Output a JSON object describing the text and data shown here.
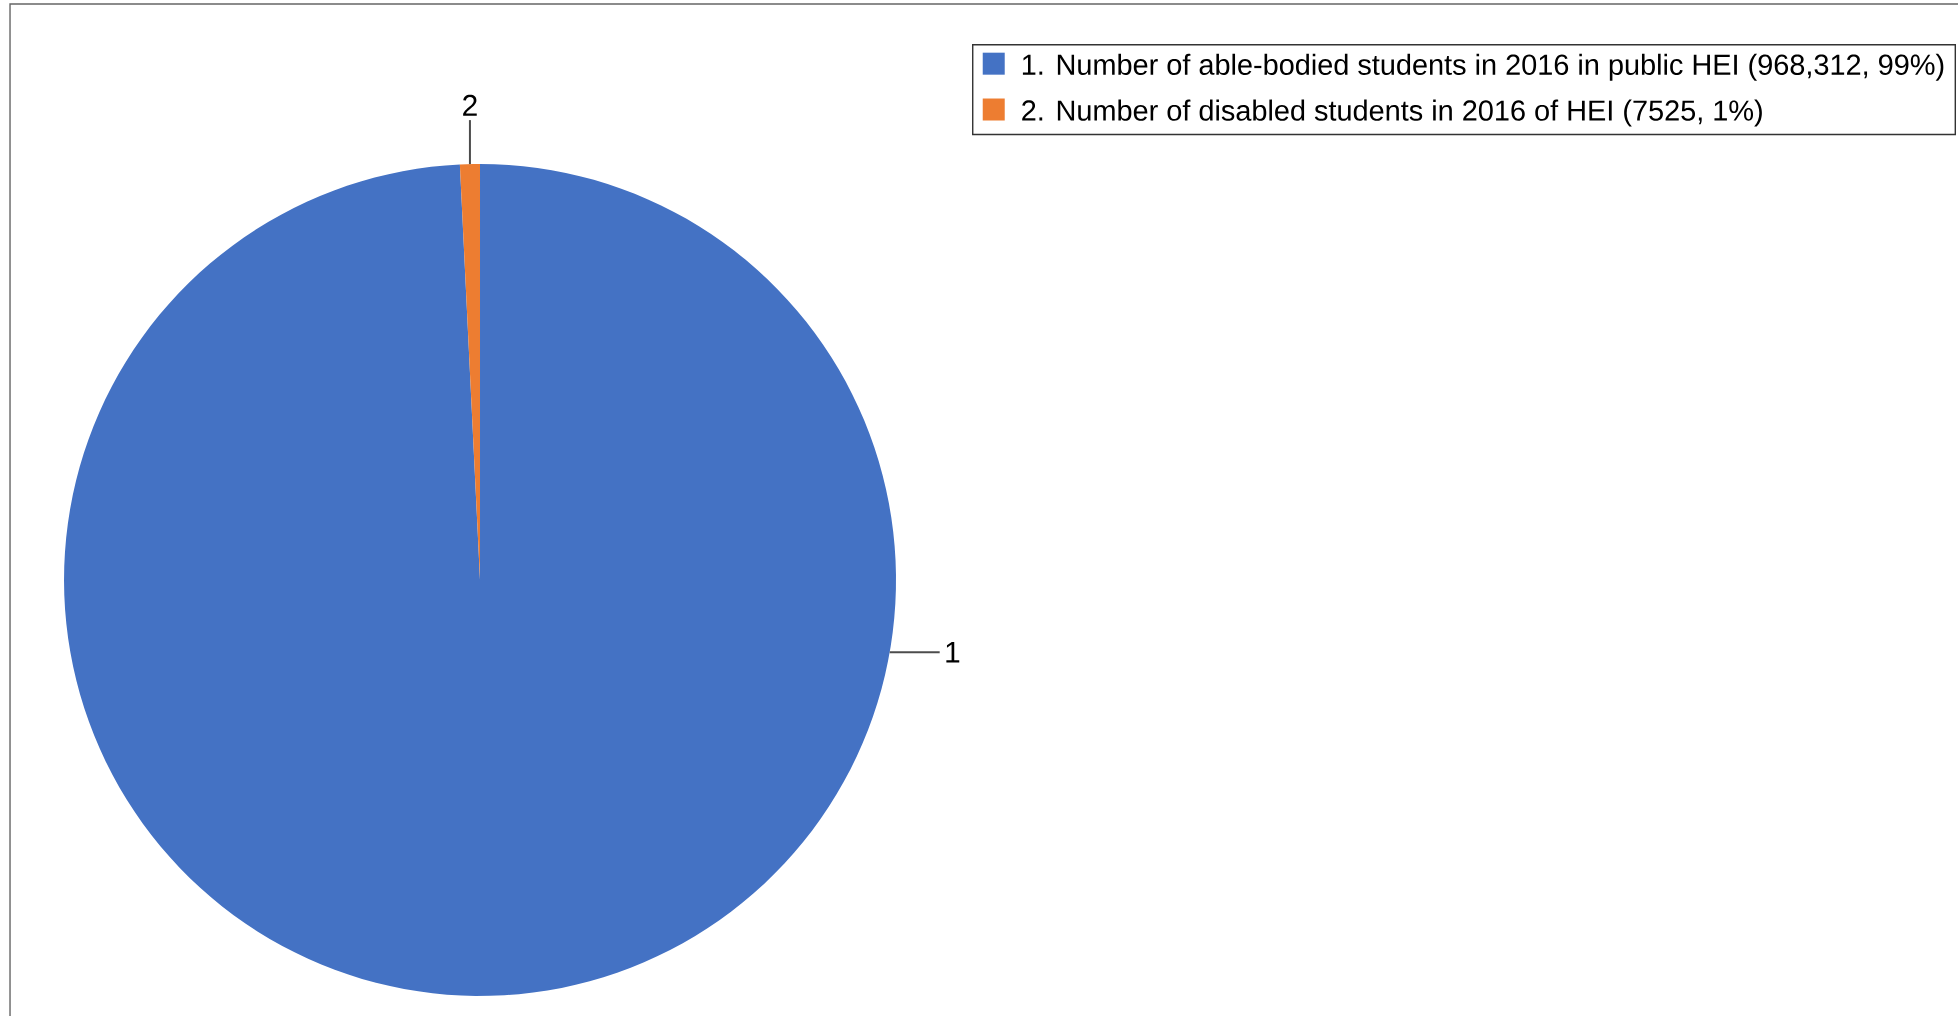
{
  "chart_data": {
    "type": "pie",
    "categories": [
      "1. Number of able-bodied students in 2016 in public HEI (968,312, 99%)",
      "2. Number of disabled students in 2016 of HEI (7525, 1%)"
    ],
    "values": [
      968312,
      7525
    ],
    "colors": [
      "#4472c4",
      "#ed7d31"
    ],
    "annotations": [
      "1",
      "2"
    ],
    "legend": "top right"
  }
}
